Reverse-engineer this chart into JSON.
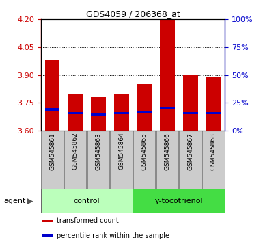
{
  "title": "GDS4059 / 206368_at",
  "samples": [
    "GSM545861",
    "GSM545862",
    "GSM545863",
    "GSM545864",
    "GSM545865",
    "GSM545866",
    "GSM545867",
    "GSM545868"
  ],
  "bar_values": [
    3.98,
    3.8,
    3.78,
    3.8,
    3.85,
    4.2,
    3.9,
    3.89
  ],
  "percentile_values": [
    3.715,
    3.695,
    3.685,
    3.695,
    3.7,
    3.72,
    3.695,
    3.695
  ],
  "ymin": 3.6,
  "ymax": 4.2,
  "yticks_left": [
    3.6,
    3.75,
    3.9,
    4.05,
    4.2
  ],
  "yticks_right": [
    0,
    25,
    50,
    75,
    100
  ],
  "bar_color": "#cc0000",
  "percentile_color": "#0000cc",
  "bar_width": 0.65,
  "groups": [
    {
      "label": "control",
      "indices": [
        0,
        1,
        2,
        3
      ],
      "color": "#bbffbb"
    },
    {
      "label": "γ-tocotrienol",
      "indices": [
        4,
        5,
        6,
        7
      ],
      "color": "#44dd44"
    }
  ],
  "agent_label": "agent",
  "legend_items": [
    {
      "label": "transformed count",
      "color": "#cc0000"
    },
    {
      "label": "percentile rank within the sample",
      "color": "#0000cc"
    }
  ],
  "background_color": "#ffffff",
  "plot_bg_color": "#ffffff",
  "tick_label_color_left": "#cc0000",
  "tick_label_color_right": "#0000cc",
  "sample_box_color": "#cccccc",
  "sample_box_edge": "#888888"
}
